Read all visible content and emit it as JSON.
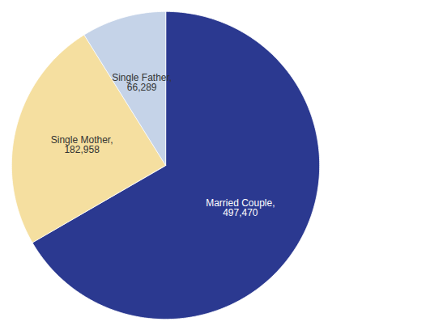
{
  "chart_data": {
    "type": "pie",
    "categories": [
      "Married Couple",
      "Single Mother",
      "Single Father"
    ],
    "values": [
      497470,
      182958,
      66289
    ],
    "colors": [
      "#2B3990",
      "#F5DFA0",
      "#C5D3E8"
    ],
    "data_labels": true,
    "value_labels": [
      "Married Couple,\n497,470",
      "Single Mother,\n182,958",
      "Single Father,\n66,289"
    ],
    "tick_labels": false
  }
}
